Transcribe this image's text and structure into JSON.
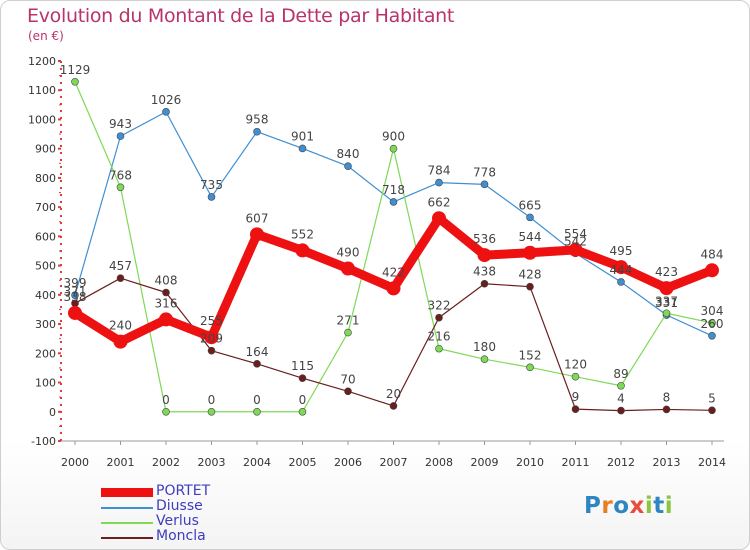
{
  "title": "Evolution du Montant de la Dette par Habitant",
  "unit": "(en €)",
  "logo": {
    "text": "Proxiti",
    "letter_colors": [
      "#2e86c1",
      "#e67e22",
      "#2e86c1",
      "#e74c3c",
      "#8cc63f",
      "#2e86c1",
      "#8cc63f"
    ]
  },
  "chart_data": {
    "type": "line",
    "title": "Evolution du Montant de la Dette par Habitant",
    "ylabel": "(en €)",
    "xlabel": "",
    "x": [
      "2000",
      "2001",
      "2002",
      "2003",
      "2004",
      "2005",
      "2006",
      "2007",
      "2008",
      "2009",
      "2010",
      "2011",
      "2012",
      "2013",
      "2014"
    ],
    "ylim": [
      -100,
      1200
    ],
    "yticks": [
      -100,
      0,
      100,
      200,
      300,
      400,
      500,
      600,
      700,
      800,
      900,
      1000,
      1100,
      1200
    ],
    "grid": false,
    "legend_position": "bottom-left",
    "series": [
      {
        "name": "PORTET",
        "color": "#ee1111",
        "emphasis": true,
        "values": [
          338,
          240,
          316,
          255,
          607,
          552,
          490,
          422,
          662,
          536,
          544,
          554,
          495,
          423,
          484
        ],
        "labels": [
          "338",
          "240",
          "316",
          "255",
          "607",
          "552",
          "490",
          "422",
          "662",
          "536",
          "544",
          "554",
          "495",
          "423",
          "484"
        ]
      },
      {
        "name": "Diusse",
        "color": "#3f8fd2",
        "values": [
          399,
          943,
          1026,
          735,
          958,
          901,
          840,
          718,
          784,
          778,
          665,
          542,
          444,
          331,
          260
        ],
        "labels": [
          "399",
          "943",
          "1026",
          "735",
          "958",
          "901",
          "840",
          "718",
          "784",
          "778",
          "665",
          "542",
          "444",
          "331",
          "260"
        ]
      },
      {
        "name": "Verlus",
        "color": "#7ed957",
        "values": [
          1129,
          768,
          0,
          0,
          0,
          0,
          271,
          900,
          216,
          180,
          152,
          120,
          89,
          337,
          304
        ],
        "labels": [
          "1129",
          "768",
          "0",
          "0",
          "0",
          "0",
          "271",
          "900",
          "216",
          "180",
          "152",
          "120",
          "89",
          "337",
          "304"
        ]
      },
      {
        "name": "Moncla",
        "color": "#6b1e1e",
        "values": [
          371,
          457,
          408,
          209,
          164,
          115,
          70,
          20,
          322,
          438,
          428,
          9,
          4,
          8,
          5
        ],
        "labels": [
          "371",
          "457",
          "408",
          "209",
          "164",
          "115",
          "70",
          "20",
          "322",
          "438",
          "428",
          "9",
          "4",
          "8",
          "5"
        ]
      }
    ]
  }
}
